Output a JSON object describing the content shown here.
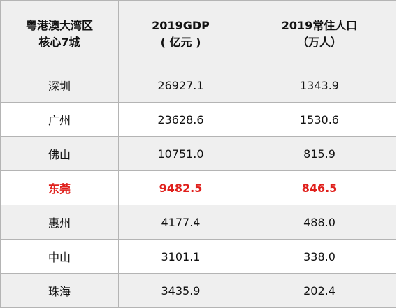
{
  "header": {
    "col1_line1": "粤港澳大湾区",
    "col1_line2": "核心7城",
    "col2_line1": "2019GDP",
    "col2_line2": "( 亿元 )",
    "col3_line1": "2019常住人口",
    "col3_line2": "（万人）"
  },
  "rows": [
    {
      "city": "深圳",
      "gdp": "26927.1",
      "pop": "1343.9"
    },
    {
      "city": "广州",
      "gdp": "23628.6",
      "pop": "1530.6"
    },
    {
      "city": "佛山",
      "gdp": "10751.0",
      "pop": "815.9"
    },
    {
      "city": "东莞",
      "gdp": "9482.5",
      "pop": "846.5"
    },
    {
      "city": "惠州",
      "gdp": "4177.4",
      "pop": "488.0"
    },
    {
      "city": "中山",
      "gdp": "3101.1",
      "pop": "338.0"
    },
    {
      "city": "珠海",
      "gdp": "3435.9",
      "pop": "202.4"
    }
  ],
  "highlight_color": "#e0201c"
}
